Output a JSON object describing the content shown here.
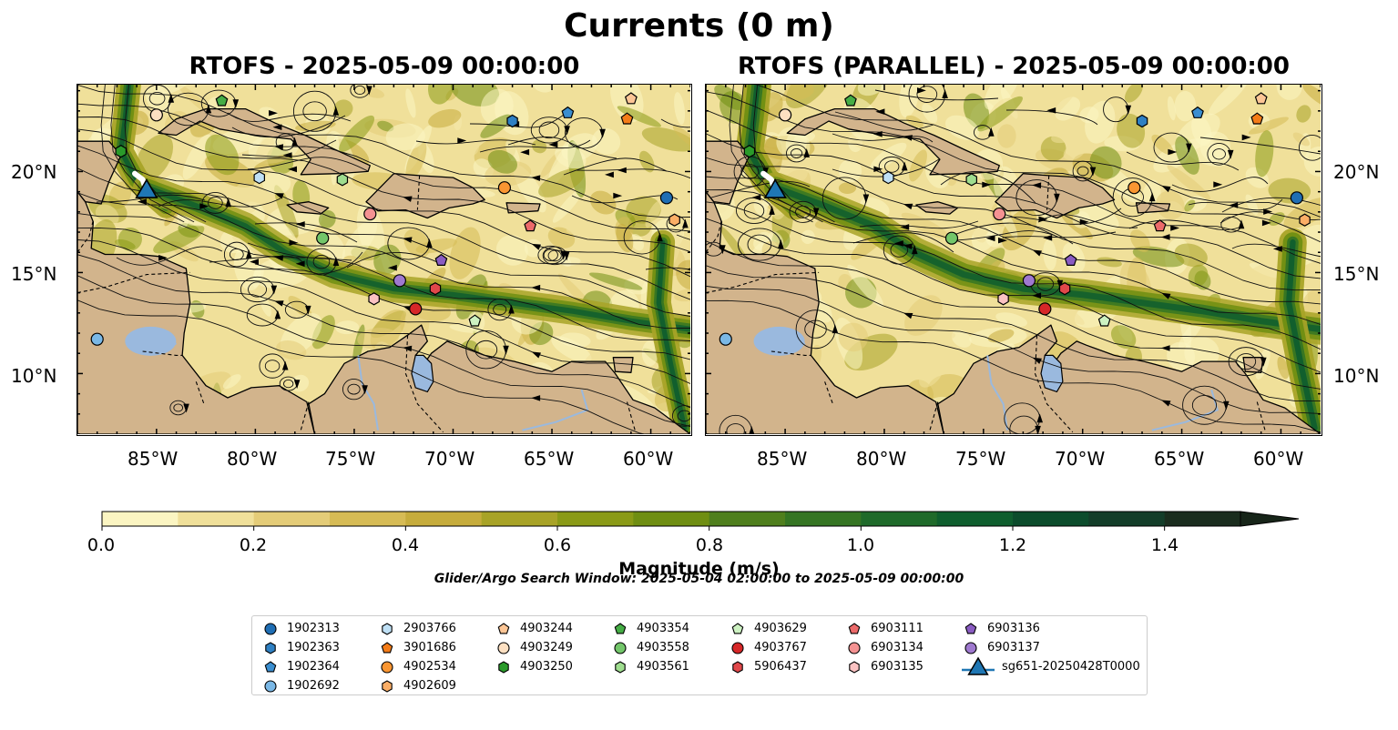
{
  "title": "Currents (0 m)",
  "panels": [
    {
      "title": "RTOFS - 2025-05-09 00:00:00"
    },
    {
      "title": "RTOFS (PARALLEL) - 2025-05-09 00:00:00"
    }
  ],
  "lon_labels": [
    "85°W",
    "80°W",
    "75°W",
    "70°W",
    "65°W",
    "60°W"
  ],
  "lat_labels": [
    "20°N",
    "15°N",
    "10°N"
  ],
  "colorbar": {
    "label": "Magnitude (m/s)",
    "tick_labels": [
      "0.0",
      "0.2",
      "0.4",
      "0.6",
      "0.8",
      "1.0",
      "1.2",
      "1.4"
    ],
    "colors": [
      "#fbf5c2",
      "#f0e09a",
      "#e4cc78",
      "#d6bb55",
      "#c6ac3c",
      "#a8a327",
      "#8a9a16",
      "#6f8e12",
      "#4f7f1d",
      "#357523",
      "#1f6a2a",
      "#0f5e2e",
      "#0c4c2c",
      "#133d29",
      "#1a2d1e",
      "#172519"
    ]
  },
  "search_window": "Glider/Argo Search Window: 2025-05-04 02:00:00 to 2025-05-09 00:00:00",
  "legend": {
    "items": [
      {
        "label": "1902313",
        "marker": "circle",
        "color": "#1f6eb4"
      },
      {
        "label": "1902363",
        "marker": "hexagon",
        "color": "#2f80c3"
      },
      {
        "label": "1902364",
        "marker": "pentagon",
        "color": "#3a8ed0"
      },
      {
        "label": "1902692",
        "marker": "circle",
        "color": "#7ab8e6"
      },
      {
        "label": "2903766",
        "marker": "hexagon",
        "color": "#bfe0f5"
      },
      {
        "label": "3901686",
        "marker": "pentagon",
        "color": "#f47c18"
      },
      {
        "label": "4902534",
        "marker": "circle",
        "color": "#fa9632"
      },
      {
        "label": "4902609",
        "marker": "hexagon",
        "color": "#fbae66"
      },
      {
        "label": "4903244",
        "marker": "pentagon",
        "color": "#fdc696"
      },
      {
        "label": "4903249",
        "marker": "circle",
        "color": "#fde0c2"
      },
      {
        "label": "4903250",
        "marker": "hexagon",
        "color": "#2a9a2a"
      },
      {
        "label": "4903354",
        "marker": "pentagon",
        "color": "#45ad45"
      },
      {
        "label": "4903558",
        "marker": "circle",
        "color": "#73c66a"
      },
      {
        "label": "4903561",
        "marker": "hexagon",
        "color": "#9fdd8f"
      },
      {
        "label": "4903629",
        "marker": "pentagon",
        "color": "#cdf2c2"
      },
      {
        "label": "4903767",
        "marker": "circle",
        "color": "#d62728"
      },
      {
        "label": "5906437",
        "marker": "hexagon",
        "color": "#e0484a"
      },
      {
        "label": "6903111",
        "marker": "pentagon",
        "color": "#ec6a6a"
      },
      {
        "label": "6903134",
        "marker": "circle",
        "color": "#f49292"
      },
      {
        "label": "6903135",
        "marker": "hexagon",
        "color": "#fbc2c2"
      },
      {
        "label": "6903136",
        "marker": "pentagon",
        "color": "#8a5cc2"
      },
      {
        "label": "6903137",
        "marker": "circle",
        "color": "#9f79cf"
      },
      {
        "label": "sg651-20250428T0000",
        "marker": "triangle",
        "color": "#1f77b4"
      }
    ]
  },
  "glider_track_lonlat": [
    [
      -85.5,
      19.0
    ],
    [
      -85.7,
      19.6
    ],
    [
      -86.1,
      19.9
    ]
  ],
  "float_positions": [
    {
      "id": "1902313",
      "lon": -59.2,
      "lat": 18.7
    },
    {
      "id": "1902363",
      "lon": -67.0,
      "lat": 22.5
    },
    {
      "id": "1902364",
      "lon": -64.2,
      "lat": 22.9
    },
    {
      "id": "1902692",
      "lon": -88.0,
      "lat": 11.7
    },
    {
      "id": "2903766",
      "lon": -79.8,
      "lat": 19.7
    },
    {
      "id": "3901686",
      "lon": -61.2,
      "lat": 22.6
    },
    {
      "id": "4902534",
      "lon": -67.4,
      "lat": 19.2
    },
    {
      "id": "4902609",
      "lon": -58.8,
      "lat": 17.6
    },
    {
      "id": "4903244",
      "lon": -61.0,
      "lat": 23.6
    },
    {
      "id": "4903249",
      "lon": -85.0,
      "lat": 22.8
    },
    {
      "id": "4903250",
      "lon": -86.8,
      "lat": 21.0
    },
    {
      "id": "4903354",
      "lon": -81.7,
      "lat": 23.5
    },
    {
      "id": "4903558",
      "lon": -76.6,
      "lat": 16.7
    },
    {
      "id": "4903561",
      "lon": -75.6,
      "lat": 19.6
    },
    {
      "id": "4903629",
      "lon": -68.9,
      "lat": 12.6
    },
    {
      "id": "4903767",
      "lon": -71.9,
      "lat": 13.2
    },
    {
      "id": "5906437",
      "lon": -70.9,
      "lat": 14.2
    },
    {
      "id": "6903111",
      "lon": -66.1,
      "lat": 17.3
    },
    {
      "id": "6903134",
      "lon": -74.2,
      "lat": 17.9
    },
    {
      "id": "6903135",
      "lon": -74.0,
      "lat": 13.7
    },
    {
      "id": "6903136",
      "lon": -70.6,
      "lat": 15.6
    },
    {
      "id": "6903137",
      "lon": -72.7,
      "lat": 14.6
    },
    {
      "id": "sg651-20250428T0000",
      "lon": -85.5,
      "lat": 19.0
    }
  ]
}
